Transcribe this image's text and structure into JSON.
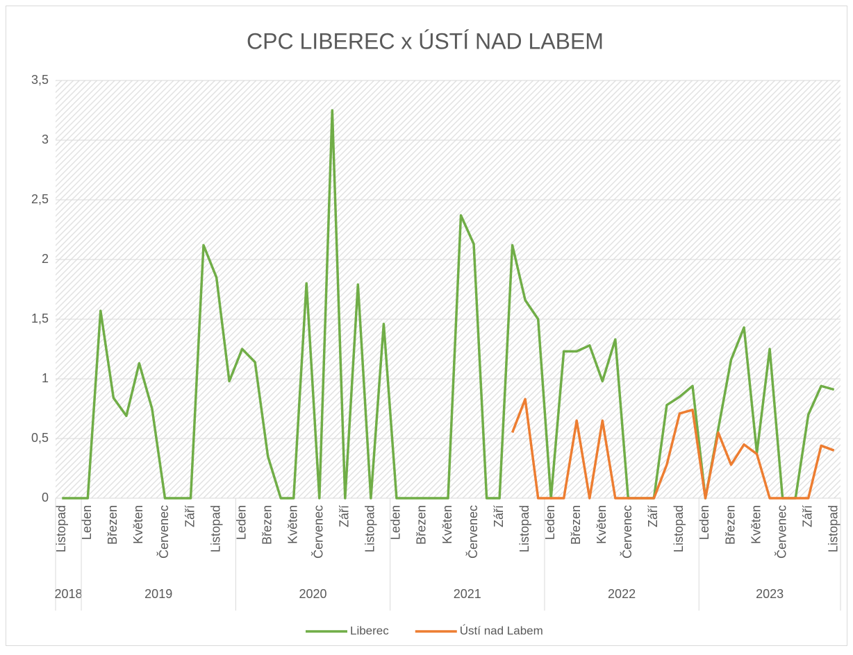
{
  "chart_data": {
    "type": "line",
    "title": "CPC LIBEREC x ÚSTÍ NAD LABEM",
    "categories": [
      "Listopad",
      null,
      "Leden",
      null,
      "Březen",
      null,
      "Květen",
      null,
      "Červenec",
      null,
      "Září",
      null,
      "Listopad",
      null,
      "Leden",
      null,
      "Březen",
      null,
      "Květen",
      null,
      "Červenec",
      null,
      "Září",
      null,
      "Listopad",
      null,
      "Leden",
      null,
      "Březen",
      null,
      "Květen",
      null,
      "Červenec",
      null,
      "Září",
      null,
      "Listopad",
      null,
      "Leden",
      null,
      "Březen",
      null,
      "Květen",
      null,
      "Červenec",
      null,
      "Září",
      null,
      "Listopad",
      null,
      "Leden",
      null,
      "Březen",
      null,
      "Květen",
      null,
      "Červenec",
      null,
      "Září",
      null,
      "Listopad"
    ],
    "year_groups": [
      {
        "label": "2018",
        "from": 0,
        "to": 1
      },
      {
        "label": "2019",
        "from": 2,
        "to": 13
      },
      {
        "label": "2020",
        "from": 14,
        "to": 25
      },
      {
        "label": "2021",
        "from": 26,
        "to": 37
      },
      {
        "label": "2022",
        "from": 38,
        "to": 49
      },
      {
        "label": "2023",
        "from": 50,
        "to": 60
      }
    ],
    "series": [
      {
        "name": "Liberec",
        "color": "#70ad47",
        "values": [
          0,
          0,
          0,
          1.57,
          0.84,
          0.69,
          1.13,
          0.75,
          0,
          0,
          0,
          2.12,
          1.85,
          0.98,
          1.25,
          1.14,
          0.35,
          0,
          0,
          1.8,
          0,
          3.25,
          0,
          1.79,
          0,
          1.46,
          0,
          0,
          0,
          0,
          0,
          2.37,
          2.13,
          0,
          0,
          2.12,
          1.66,
          1.5,
          0,
          1.23,
          1.23,
          1.28,
          0.98,
          1.33,
          0,
          0,
          0,
          0.78,
          0.85,
          0.94,
          0,
          0.58,
          1.16,
          1.43,
          0.38,
          1.25,
          0,
          0,
          0.7,
          0.94,
          0.91
        ]
      },
      {
        "name": "Ústí nad Labem",
        "color": "#ed7d31",
        "values": [
          null,
          null,
          null,
          null,
          null,
          null,
          null,
          null,
          null,
          null,
          null,
          null,
          null,
          null,
          null,
          null,
          null,
          null,
          null,
          null,
          null,
          null,
          null,
          null,
          null,
          null,
          null,
          null,
          null,
          null,
          null,
          null,
          null,
          null,
          null,
          0.55,
          0.83,
          0,
          0,
          0,
          0.65,
          0,
          0.65,
          0,
          0,
          0,
          0,
          0.28,
          0.71,
          0.74,
          0,
          0.55,
          0.28,
          0.45,
          0.37,
          0,
          0,
          0,
          0,
          0.44,
          0.4
        ]
      }
    ],
    "ylim": [
      0,
      3.5
    ],
    "yticks": [
      0,
      {
        "value": 0.5,
        "label": "0,5"
      },
      1,
      {
        "value": 1.5,
        "label": "1,5"
      },
      2,
      {
        "value": 2.5,
        "label": "2,5"
      },
      3,
      {
        "value": 3.5,
        "label": "3,5"
      }
    ],
    "grid": true,
    "legend": "bottom"
  }
}
